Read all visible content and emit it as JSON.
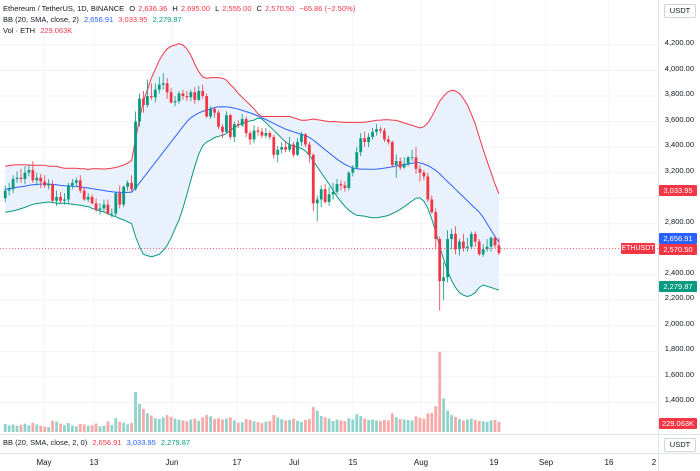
{
  "header": {
    "symbol": "Ethereum / TetherUS, 1D, BINANCE",
    "o_label": "O",
    "o_value": "2,636.36",
    "h_label": "H",
    "h_value": "2,695.00",
    "l_label": "L",
    "l_value": "2,555.00",
    "c_label": "C",
    "c_value": "2,570.50",
    "change": "−65.86 (−2.50%)"
  },
  "bb_legend": {
    "label": "BB (20, SMA, close, 2)",
    "middle": "2,656.91",
    "upper": "3,033.95",
    "lower": "2,279.87"
  },
  "vol_legend": {
    "label": "Vol · ETH",
    "value": "229.063K"
  },
  "lower_pane_legend": {
    "label": "BB (20, SMA, close, 2, 0)",
    "middle": "2,656.91",
    "upper": "3,033.95",
    "lower": "2,279.87"
  },
  "price_axis": {
    "currency": "USDT",
    "ticks": [
      "4,200.00",
      "4,000.00",
      "3,800.00",
      "3,600.00",
      "3,400.00",
      "3,200.00",
      "2,800.00",
      "2,400.00",
      "2,200.00",
      "2,000.00",
      "1,800.00",
      "1,600.00",
      "1,400.00"
    ],
    "tags": {
      "bb_upper": "3,033.95",
      "bb_middle": "2,656.91",
      "last_price": "2,570.50",
      "bb_lower": "2,279.87",
      "volume": "229.063K"
    }
  },
  "lower_axis_currency": "USDT",
  "ethusdt_tag": "ETHUSDT",
  "time_axis": [
    "May",
    "13",
    "Jun",
    "17",
    "Jul",
    "15",
    "Aug",
    "19",
    "Sep",
    "16",
    "2"
  ],
  "colors": {
    "up": "#089981",
    "down": "#f23645",
    "bb_upper": "#f23645",
    "bb_middle": "#2962ff",
    "bb_lower": "#089981",
    "bb_fill": "#e9f1fc",
    "vol_up": "#8fd3cb",
    "vol_down": "#f7a9a7"
  },
  "chart_data": {
    "type": "candlestick",
    "x": [
      "Apr 17",
      "Apr 18",
      "Apr 19",
      "Apr 20",
      "Apr 21",
      "Apr 22",
      "Apr 23",
      "Apr 24",
      "Apr 25",
      "Apr 26",
      "Apr 27",
      "Apr 28",
      "Apr 29",
      "Apr 30",
      "May 1",
      "May 2",
      "May 3",
      "May 4",
      "May 5",
      "May 6",
      "May 7",
      "May 8",
      "May 9",
      "May 10",
      "May 11",
      "May 12",
      "May 13",
      "May 14",
      "May 15",
      "May 16",
      "May 17",
      "May 18",
      "May 19",
      "May 20",
      "May 21",
      "May 22",
      "May 23",
      "May 24",
      "May 25",
      "May 26",
      "May 27",
      "May 28",
      "May 29",
      "May 30",
      "May 31",
      "Jun 1",
      "Jun 2",
      "Jun 3",
      "Jun 4",
      "Jun 5",
      "Jun 6",
      "Jun 7",
      "Jun 8",
      "Jun 9",
      "Jun 10",
      "Jun 11",
      "Jun 12",
      "Jun 13",
      "Jun 14",
      "Jun 15",
      "Jun 16",
      "Jun 17",
      "Jun 18",
      "Jun 19",
      "Jun 20",
      "Jun 21",
      "Jun 22",
      "Jun 23",
      "Jun 24",
      "Jun 25",
      "Jun 26",
      "Jun 27",
      "Jun 28",
      "Jun 29",
      "Jun 30",
      "Jul 1",
      "Jul 2",
      "Jul 3",
      "Jul 4",
      "Jul 5",
      "Jul 6",
      "Jul 7",
      "Jul 8",
      "Jul 9",
      "Jul 10",
      "Jul 11",
      "Jul 12",
      "Jul 13",
      "Jul 14",
      "Jul 15",
      "Jul 16",
      "Jul 17",
      "Jul 18",
      "Jul 19",
      "Jul 20",
      "Jul 21",
      "Jul 22",
      "Jul 23",
      "Jul 24",
      "Jul 25",
      "Jul 26",
      "Jul 27",
      "Jul 28",
      "Jul 29",
      "Jul 30",
      "Jul 31",
      "Aug 1",
      "Aug 2",
      "Aug 3",
      "Aug 4",
      "Aug 5",
      "Aug 6",
      "Aug 7",
      "Aug 8",
      "Aug 9",
      "Aug 10",
      "Aug 11",
      "Aug 12",
      "Aug 13",
      "Aug 14",
      "Aug 15",
      "Aug 16",
      "Aug 17",
      "Aug 18",
      "Aug 19",
      "Aug 20"
    ],
    "open": [
      3000,
      3060,
      3070,
      3150,
      3160,
      3150,
      3200,
      3220,
      3140,
      3160,
      3130,
      3100,
      3110,
      2980,
      3010,
      2980,
      2990,
      3100,
      3120,
      3140,
      3060,
      2990,
      3010,
      2960,
      2910,
      2920,
      2950,
      2880,
      2880,
      3040,
      2950,
      3090,
      3120,
      3070,
      3600,
      3780,
      3730,
      3800,
      3790,
      3850,
      3890,
      3900,
      3830,
      3750,
      3760,
      3820,
      3800,
      3790,
      3830,
      3770,
      3840,
      3800,
      3640,
      3700,
      3670,
      3560,
      3520,
      3650,
      3480,
      3580,
      3570,
      3620,
      3510,
      3460,
      3530,
      3520,
      3490,
      3510,
      3480,
      3340,
      3380,
      3400,
      3380,
      3420,
      3340,
      3440,
      3500,
      3420,
      3340,
      2960,
      2990,
      3070,
      2970,
      3030,
      3050,
      3110,
      3100,
      3080,
      3200,
      3240,
      3360,
      3470,
      3440,
      3480,
      3520,
      3540,
      3530,
      3460,
      3440,
      3260,
      3290,
      3240,
      3270,
      3320,
      3320,
      3230,
      3200,
      3170,
      2990,
      2890,
      2680,
      2350,
      2380,
      2680,
      2720,
      2600,
      2660,
      2610,
      2620,
      2720,
      2660,
      2560,
      2600,
      2620,
      2690,
      2630
    ],
    "high": [
      3100,
      3120,
      3180,
      3210,
      3230,
      3250,
      3260,
      3290,
      3200,
      3190,
      3180,
      3150,
      3140,
      3060,
      3050,
      3040,
      3120,
      3150,
      3160,
      3180,
      3080,
      3040,
      3030,
      3000,
      2960,
      2990,
      2990,
      2920,
      3050,
      3100,
      3100,
      3140,
      3180,
      3680,
      3820,
      3840,
      3930,
      3900,
      3900,
      3950,
      3980,
      3940,
      3860,
      3800,
      3840,
      3850,
      3840,
      3850,
      3870,
      3880,
      3890,
      3820,
      3720,
      3710,
      3690,
      3580,
      3680,
      3660,
      3600,
      3610,
      3660,
      3640,
      3530,
      3570,
      3560,
      3550,
      3550,
      3530,
      3500,
      3410,
      3440,
      3450,
      3480,
      3440,
      3470,
      3520,
      3510,
      3440,
      3350,
      3020,
      3100,
      3110,
      3090,
      3120,
      3150,
      3140,
      3130,
      3210,
      3260,
      3400,
      3510,
      3520,
      3510,
      3550,
      3580,
      3560,
      3550,
      3490,
      3450,
      3340,
      3320,
      3320,
      3330,
      3380,
      3400,
      3260,
      3220,
      3200,
      3020,
      2920,
      2700,
      2500,
      2750,
      2760,
      2780,
      2680,
      2720,
      2690,
      2740,
      2740,
      2680,
      2640,
      2680,
      2700,
      2700,
      2690
    ],
    "low": [
      2970,
      3020,
      3040,
      3120,
      3120,
      3110,
      3170,
      3120,
      3100,
      3080,
      3080,
      3070,
      2970,
      2940,
      2960,
      2950,
      2960,
      3070,
      3090,
      3040,
      2980,
      2970,
      2950,
      2890,
      2870,
      2890,
      2870,
      2850,
      2860,
      2920,
      2930,
      3060,
      3050,
      3060,
      3560,
      3670,
      3710,
      3770,
      3750,
      3820,
      3850,
      3780,
      3740,
      3720,
      3740,
      3770,
      3760,
      3760,
      3740,
      3760,
      3780,
      3630,
      3620,
      3630,
      3540,
      3470,
      3510,
      3460,
      3440,
      3550,
      3560,
      3480,
      3420,
      3430,
      3490,
      3470,
      3470,
      3460,
      3310,
      3280,
      3350,
      3360,
      3360,
      3320,
      3330,
      3410,
      3400,
      3280,
      2900,
      2820,
      2930,
      2960,
      2940,
      2990,
      3030,
      3060,
      3050,
      3060,
      3170,
      3230,
      3330,
      3400,
      3400,
      3460,
      3490,
      3510,
      3440,
      3420,
      3240,
      3160,
      3220,
      3230,
      3250,
      3290,
      3190,
      3130,
      3140,
      2970,
      2880,
      2600,
      2120,
      2200,
      2340,
      2600,
      2560,
      2550,
      2580,
      2580,
      2600,
      2620,
      2550,
      2540,
      2580,
      2580,
      2610,
      2555
    ],
    "close": [
      3060,
      3070,
      3150,
      3160,
      3150,
      3200,
      3220,
      3140,
      3160,
      3130,
      3100,
      3110,
      2980,
      3010,
      2980,
      2990,
      3100,
      3120,
      3140,
      3060,
      2990,
      3010,
      2960,
      2910,
      2920,
      2950,
      2880,
      2880,
      3040,
      2950,
      3090,
      3120,
      3070,
      3600,
      3780,
      3730,
      3800,
      3790,
      3850,
      3890,
      3900,
      3830,
      3750,
      3760,
      3820,
      3800,
      3790,
      3830,
      3770,
      3840,
      3800,
      3640,
      3700,
      3670,
      3560,
      3520,
      3650,
      3480,
      3580,
      3570,
      3620,
      3510,
      3460,
      3530,
      3520,
      3490,
      3510,
      3480,
      3340,
      3380,
      3400,
      3380,
      3420,
      3340,
      3440,
      3500,
      3420,
      3340,
      2960,
      2990,
      3070,
      2970,
      3030,
      3050,
      3110,
      3100,
      3080,
      3200,
      3240,
      3360,
      3470,
      3440,
      3480,
      3520,
      3540,
      3530,
      3460,
      3440,
      3260,
      3290,
      3240,
      3270,
      3320,
      3320,
      3230,
      3200,
      3170,
      2990,
      2890,
      2680,
      2350,
      2380,
      2680,
      2720,
      2600,
      2660,
      2610,
      2620,
      2720,
      2660,
      2560,
      2600,
      2620,
      2690,
      2630,
      2570.5
    ],
    "volume": [
      180,
      150,
      170,
      140,
      160,
      190,
      150,
      210,
      170,
      140,
      120,
      110,
      250,
      230,
      190,
      160,
      200,
      150,
      130,
      180,
      170,
      140,
      150,
      190,
      130,
      140,
      240,
      160,
      310,
      230,
      210,
      170,
      200,
      900,
      630,
      520,
      420,
      370,
      310,
      290,
      330,
      380,
      340,
      300,
      280,
      260,
      240,
      280,
      300,
      250,
      330,
      380,
      350,
      290,
      310,
      280,
      300,
      330,
      260,
      210,
      220,
      290,
      270,
      240,
      220,
      200,
      230,
      250,
      380,
      330,
      290,
      260,
      270,
      300,
      250,
      230,
      270,
      290,
      560,
      480,
      360,
      330,
      300,
      250,
      280,
      260,
      240,
      310,
      280,
      400,
      360,
      300,
      270,
      280,
      260,
      250,
      270,
      260,
      420,
      330,
      290,
      280,
      270,
      260,
      350,
      320,
      300,
      420,
      430,
      580,
      1800,
      750,
      480,
      380,
      340,
      290,
      260,
      280,
      300,
      270,
      250,
      240,
      230,
      260,
      270,
      229.063
    ],
    "bb_upper": [
      3250,
      3255,
      3260,
      3262,
      3262,
      3262,
      3260,
      3258,
      3258,
      3258,
      3258,
      3250,
      3250,
      3250,
      3240,
      3235,
      3235,
      3235,
      3235,
      3230,
      3230,
      3225,
      3230,
      3230,
      3230,
      3228,
      3232,
      3236,
      3240,
      3250,
      3260,
      3275,
      3295,
      3460,
      3620,
      3760,
      3850,
      3940,
      4010,
      4080,
      4130,
      4170,
      4190,
      4200,
      4210,
      4200,
      4170,
      4120,
      4050,
      3990,
      3950,
      3940,
      3945,
      3945,
      3945,
      3940,
      3925,
      3890,
      3860,
      3820,
      3790,
      3760,
      3730,
      3700,
      3660,
      3640,
      3640,
      3640,
      3640,
      3640,
      3640,
      3640,
      3640,
      3630,
      3620,
      3610,
      3610,
      3615,
      3620,
      3615,
      3610,
      3605,
      3600,
      3600,
      3598,
      3596,
      3594,
      3594,
      3594,
      3594,
      3594,
      3596,
      3600,
      3605,
      3610,
      3612,
      3615,
      3615,
      3612,
      3610,
      3600,
      3590,
      3580,
      3570,
      3560,
      3550,
      3560,
      3590,
      3640,
      3700,
      3760,
      3800,
      3830,
      3845,
      3840,
      3820,
      3780,
      3730,
      3660,
      3580,
      3480,
      3380,
      3290,
      3200,
      3110,
      3033.95
    ],
    "bb_middle": [
      3070,
      3075,
      3080,
      3085,
      3090,
      3095,
      3100,
      3105,
      3108,
      3110,
      3112,
      3110,
      3108,
      3105,
      3100,
      3098,
      3096,
      3094,
      3092,
      3088,
      3084,
      3080,
      3075,
      3070,
      3065,
      3060,
      3055,
      3050,
      3048,
      3045,
      3045,
      3045,
      3048,
      3080,
      3120,
      3160,
      3200,
      3240,
      3280,
      3320,
      3360,
      3400,
      3440,
      3480,
      3520,
      3560,
      3600,
      3630,
      3650,
      3668,
      3680,
      3690,
      3700,
      3710,
      3715,
      3716,
      3715,
      3712,
      3705,
      3697,
      3688,
      3678,
      3668,
      3656,
      3644,
      3630,
      3616,
      3600,
      3586,
      3570,
      3555,
      3540,
      3530,
      3520,
      3510,
      3500,
      3490,
      3475,
      3455,
      3430,
      3405,
      3380,
      3355,
      3330,
      3305,
      3285,
      3265,
      3250,
      3238,
      3230,
      3228,
      3228,
      3226,
      3226,
      3228,
      3232,
      3236,
      3240,
      3246,
      3252,
      3256,
      3262,
      3268,
      3274,
      3280,
      3276,
      3268,
      3255,
      3238,
      3218,
      3190,
      3160,
      3130,
      3100,
      3070,
      3040,
      3010,
      2980,
      2950,
      2920,
      2890,
      2850,
      2800,
      2750,
      2700,
      2656.91
    ],
    "bb_lower": [
      2890,
      2895,
      2900,
      2908,
      2918,
      2928,
      2940,
      2952,
      2958,
      2962,
      2966,
      2970,
      2966,
      2960,
      2960,
      2961,
      2957,
      2953,
      2949,
      2946,
      2938,
      2935,
      2920,
      2910,
      2900,
      2892,
      2878,
      2864,
      2856,
      2840,
      2830,
      2815,
      2801,
      2700,
      2620,
      2560,
      2550,
      2540,
      2550,
      2560,
      2590,
      2630,
      2690,
      2760,
      2830,
      2920,
      3030,
      3140,
      3250,
      3346,
      3410,
      3440,
      3455,
      3475,
      3485,
      3492,
      3505,
      3534,
      3550,
      3574,
      3586,
      3596,
      3606,
      3612,
      3628,
      3620,
      3592,
      3560,
      3532,
      3500,
      3470,
      3440,
      3420,
      3410,
      3400,
      3390,
      3370,
      3335,
      3290,
      3245,
      3200,
      3155,
      3110,
      3060,
      3012,
      2974,
      2936,
      2906,
      2882,
      2866,
      2862,
      2860,
      2852,
      2847,
      2846,
      2852,
      2857,
      2865,
      2880,
      2894,
      2912,
      2934,
      2956,
      2978,
      3000,
      3002,
      2976,
      2920,
      2836,
      2736,
      2620,
      2520,
      2430,
      2355,
      2300,
      2260,
      2240,
      2230,
      2240,
      2260,
      2300,
      2320,
      2310,
      2300,
      2290,
      2279.87
    ],
    "ylim": [
      1300,
      4300
    ]
  }
}
